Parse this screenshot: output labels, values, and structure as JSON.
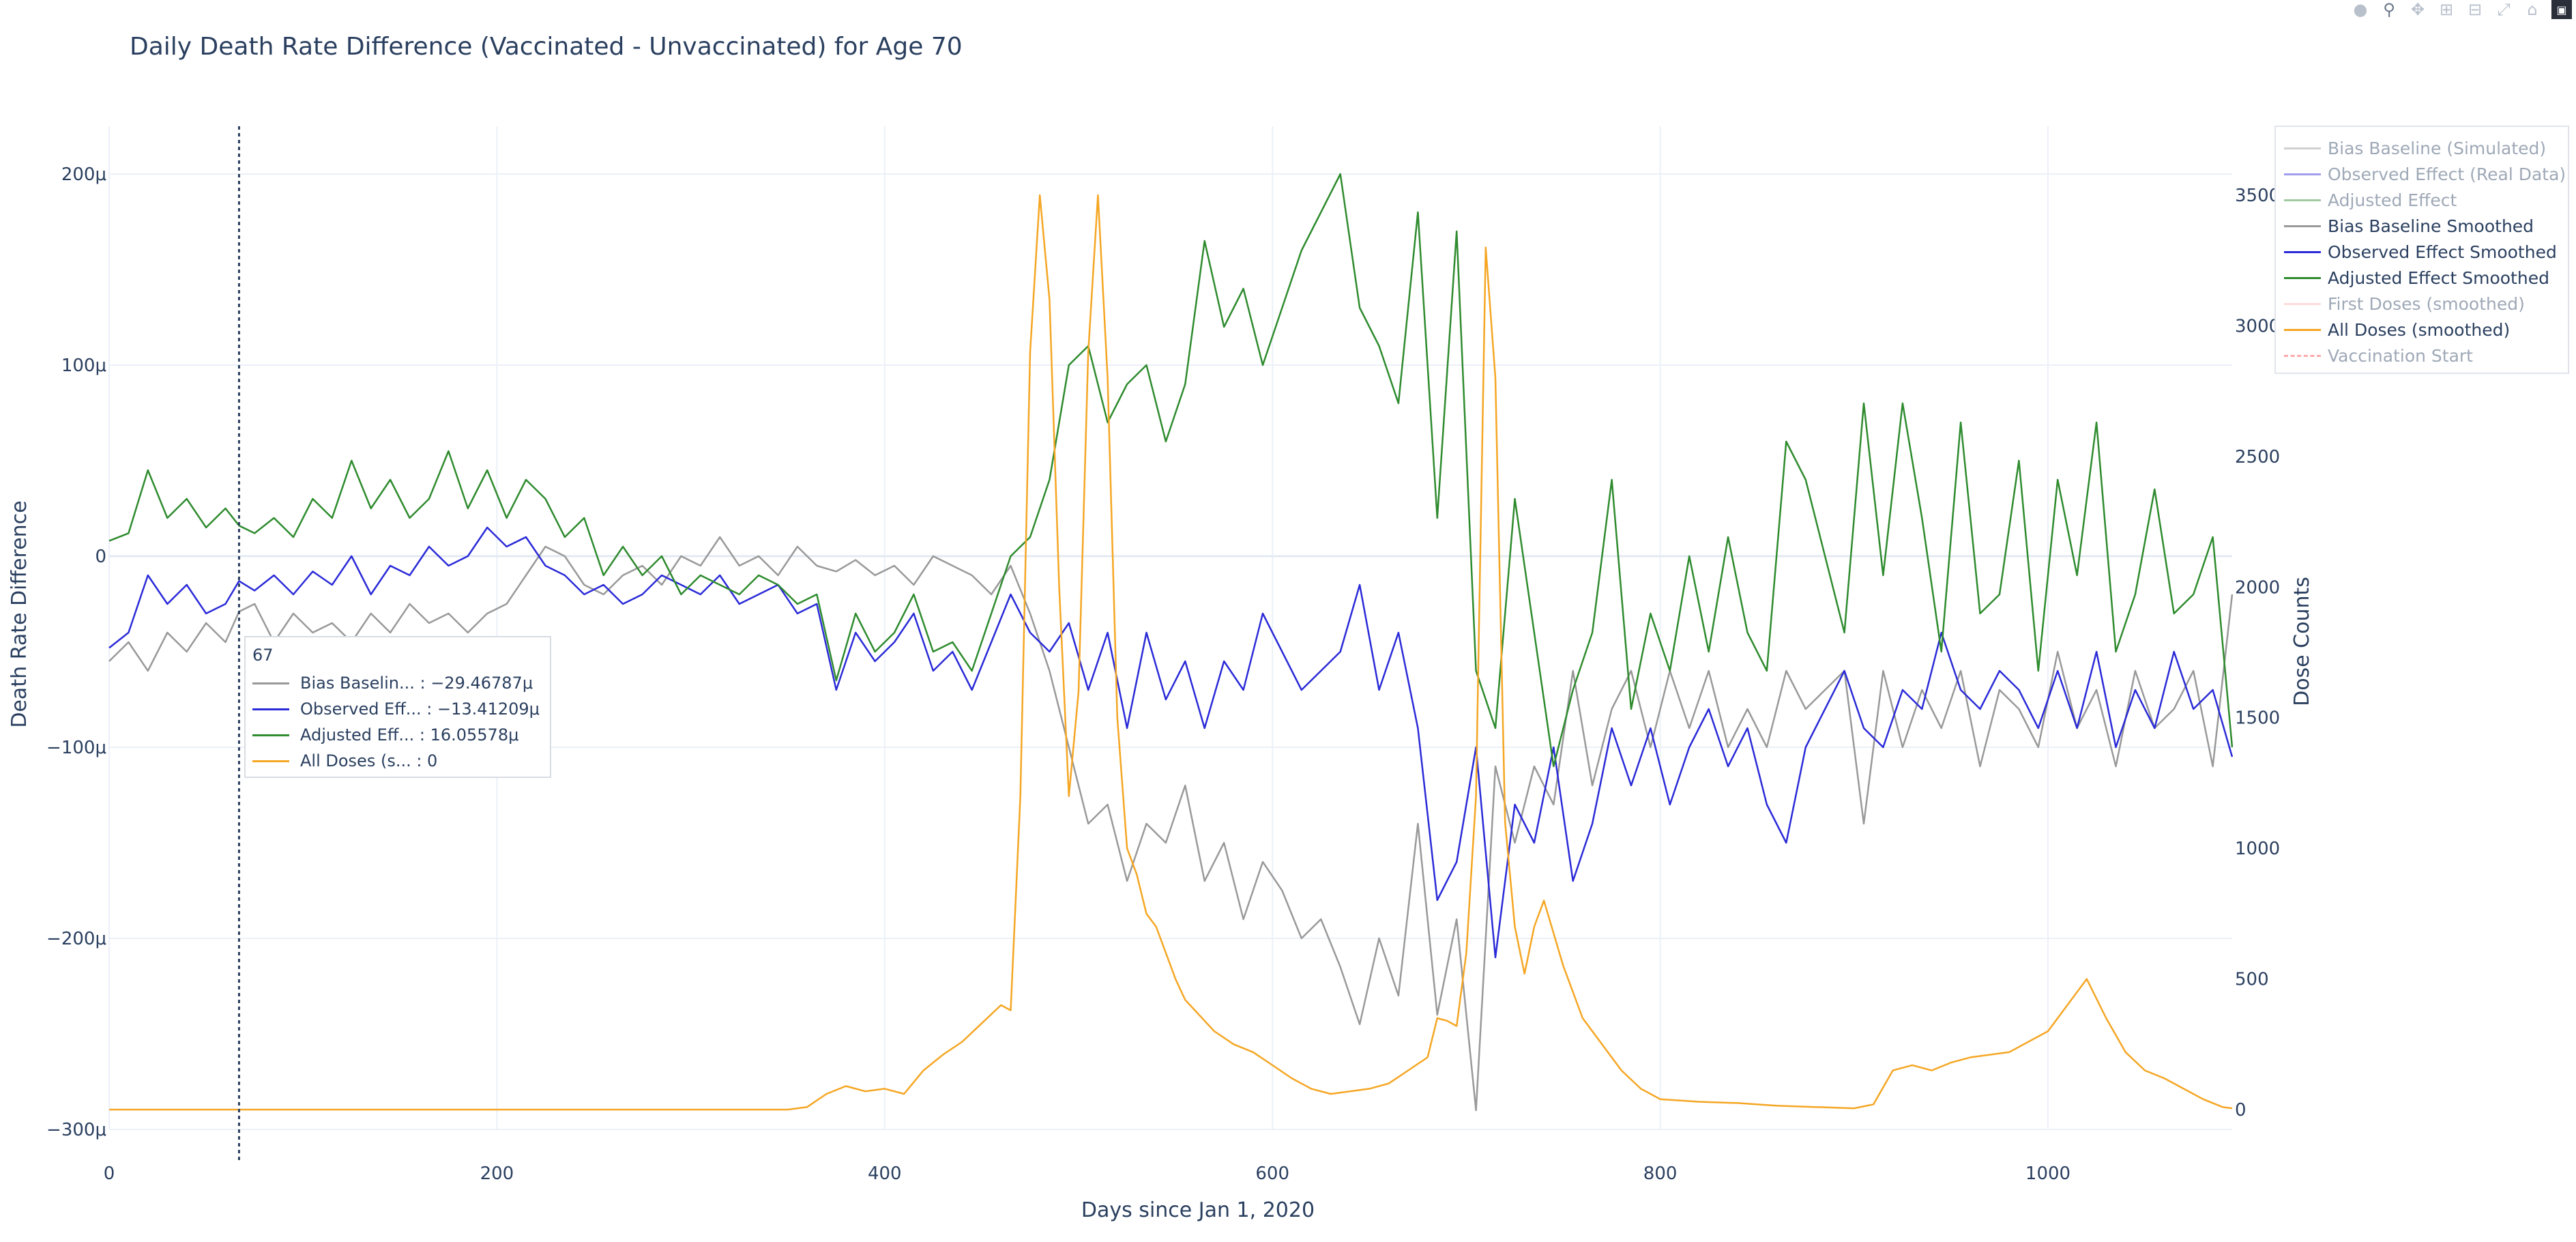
{
  "title": "Daily Death Rate Difference (Vaccinated - Unvaccinated) for Age 70",
  "modebar": [
    "camera-icon",
    "zoom-icon",
    "pan-icon",
    "zoom-in-icon",
    "zoom-out-icon",
    "autoscale-icon",
    "reset-axes-icon",
    "plotly-logo-icon"
  ],
  "legend": [
    {
      "name": "Bias Baseline (Simulated)",
      "color": "#999999",
      "visible": false
    },
    {
      "name": "Observed Effect (Real Data)",
      "color": "#2a2ad8",
      "visible": false
    },
    {
      "name": "Adjusted Effect",
      "color": "#2e8b2e",
      "visible": false
    },
    {
      "name": "Bias Baseline Smoothed",
      "color": "#999999",
      "visible": true
    },
    {
      "name": "Observed Effect Smoothed",
      "color": "#2a2ad8",
      "visible": true
    },
    {
      "name": "Adjusted Effect Smoothed",
      "color": "#2e8b2e",
      "visible": true
    },
    {
      "name": "First Doses (smoothed)",
      "color": "#ffb0b0",
      "visible": false
    },
    {
      "name": "All Doses (smoothed)",
      "color": "#f5a623",
      "visible": true
    },
    {
      "name": "Vaccination Start",
      "color": "#ff4444",
      "dash": true,
      "visible": false
    }
  ],
  "hover": {
    "x": "67",
    "rows": [
      {
        "label": "Bias Baselin... : −29.46787μ",
        "color": "#999999"
      },
      {
        "label": "Observed Eff... : −13.41209μ",
        "color": "#2a2ad8"
      },
      {
        "label": "Adjusted Eff... : 16.05578μ",
        "color": "#2e8b2e"
      },
      {
        "label": "All Doses (s... : 0",
        "color": "#f5a623"
      }
    ]
  },
  "chart_data": {
    "type": "line",
    "xlabel": "Days since Jan 1, 2020",
    "ylabel": "Death Rate Difference",
    "y2label": "Dose Counts",
    "xlim": [
      0,
      1095
    ],
    "ylim": [
      -300,
      225
    ],
    "y2lim": [
      0,
      3500
    ],
    "xticks": [
      0,
      200,
      400,
      600,
      800,
      1000
    ],
    "xtick_labels": [
      "0",
      "200",
      "400",
      "600",
      "800",
      "1000"
    ],
    "yticks": [
      -300,
      -200,
      -100,
      0,
      100,
      200
    ],
    "ytick_labels": [
      "−300μ",
      "−200μ",
      "−100μ",
      "0",
      "100μ",
      "200μ"
    ],
    "y2ticks": [
      0,
      500,
      1000,
      1500,
      2000,
      2500,
      3000,
      3500
    ],
    "y2tick_labels": [
      "0",
      "500",
      "1000",
      "1500",
      "2000",
      "2500",
      "3000",
      "3500"
    ],
    "hover_x": 67,
    "grid": true,
    "legend_position": "top-right",
    "series": [
      {
        "name": "Bias Baseline Smoothed",
        "color": "#999999",
        "axis": "y",
        "x": [
          0,
          10,
          20,
          30,
          40,
          50,
          60,
          67,
          75,
          85,
          95,
          105,
          115,
          125,
          135,
          145,
          155,
          165,
          175,
          185,
          195,
          205,
          215,
          225,
          235,
          245,
          255,
          265,
          275,
          285,
          295,
          305,
          315,
          325,
          335,
          345,
          355,
          365,
          375,
          385,
          395,
          405,
          415,
          425,
          435,
          445,
          455,
          465,
          475,
          485,
          495,
          505,
          515,
          525,
          535,
          545,
          555,
          565,
          575,
          585,
          595,
          605,
          615,
          625,
          635,
          645,
          655,
          665,
          675,
          685,
          695,
          705,
          715,
          725,
          735,
          745,
          755,
          765,
          775,
          785,
          795,
          805,
          815,
          825,
          835,
          845,
          855,
          865,
          875,
          885,
          895,
          905,
          915,
          925,
          935,
          945,
          955,
          965,
          975,
          985,
          995,
          1005,
          1015,
          1025,
          1035,
          1045,
          1055,
          1065,
          1075,
          1085,
          1095
        ],
        "y": [
          -55,
          -45,
          -60,
          -40,
          -50,
          -35,
          -45,
          -29,
          -25,
          -45,
          -30,
          -40,
          -35,
          -45,
          -30,
          -40,
          -25,
          -35,
          -30,
          -40,
          -30,
          -25,
          -10,
          5,
          0,
          -15,
          -20,
          -10,
          -5,
          -15,
          0,
          -5,
          10,
          -5,
          0,
          -10,
          5,
          -5,
          -8,
          -2,
          -10,
          -5,
          -15,
          0,
          -5,
          -10,
          -20,
          -5,
          -30,
          -60,
          -100,
          -140,
          -130,
          -170,
          -140,
          -150,
          -120,
          -170,
          -150,
          -190,
          -160,
          -175,
          -200,
          -190,
          -215,
          -245,
          -200,
          -230,
          -140,
          -240,
          -190,
          -290,
          -110,
          -150,
          -110,
          -130,
          -60,
          -120,
          -80,
          -60,
          -100,
          -60,
          -90,
          -60,
          -100,
          -80,
          -100,
          -60,
          -80,
          -70,
          -60,
          -140,
          -60,
          -100,
          -70,
          -90,
          -60,
          -110,
          -70,
          -80,
          -100,
          -50,
          -90,
          -70,
          -110,
          -60,
          -90,
          -80,
          -60,
          -110,
          -20
        ]
      },
      {
        "name": "Observed Effect Smoothed",
        "color": "#2a2ad8",
        "axis": "y",
        "x": [
          0,
          10,
          20,
          30,
          40,
          50,
          60,
          67,
          75,
          85,
          95,
          105,
          115,
          125,
          135,
          145,
          155,
          165,
          175,
          185,
          195,
          205,
          215,
          225,
          235,
          245,
          255,
          265,
          275,
          285,
          295,
          305,
          315,
          325,
          335,
          345,
          355,
          365,
          375,
          385,
          395,
          405,
          415,
          425,
          435,
          445,
          455,
          465,
          475,
          485,
          495,
          505,
          515,
          525,
          535,
          545,
          555,
          565,
          575,
          585,
          595,
          605,
          615,
          625,
          635,
          645,
          655,
          665,
          675,
          685,
          695,
          705,
          715,
          725,
          735,
          745,
          755,
          765,
          775,
          785,
          795,
          805,
          815,
          825,
          835,
          845,
          855,
          865,
          875,
          885,
          895,
          905,
          915,
          925,
          935,
          945,
          955,
          965,
          975,
          985,
          995,
          1005,
          1015,
          1025,
          1035,
          1045,
          1055,
          1065,
          1075,
          1085,
          1095
        ],
        "y": [
          -48,
          -40,
          -10,
          -25,
          -15,
          -30,
          -25,
          -13,
          -18,
          -10,
          -20,
          -8,
          -15,
          0,
          -20,
          -5,
          -10,
          5,
          -5,
          0,
          15,
          5,
          10,
          -5,
          -10,
          -20,
          -15,
          -25,
          -20,
          -10,
          -15,
          -20,
          -10,
          -25,
          -20,
          -15,
          -30,
          -25,
          -70,
          -40,
          -55,
          -45,
          -30,
          -60,
          -50,
          -70,
          -45,
          -20,
          -40,
          -50,
          -35,
          -70,
          -40,
          -90,
          -40,
          -75,
          -55,
          -90,
          -55,
          -70,
          -30,
          -50,
          -70,
          -60,
          -50,
          -15,
          -70,
          -40,
          -90,
          -180,
          -160,
          -100,
          -210,
          -130,
          -150,
          -100,
          -170,
          -140,
          -90,
          -120,
          -90,
          -130,
          -100,
          -80,
          -110,
          -90,
          -130,
          -150,
          -100,
          -80,
          -60,
          -90,
          -100,
          -70,
          -80,
          -40,
          -70,
          -80,
          -60,
          -70,
          -90,
          -60,
          -90,
          -50,
          -100,
          -70,
          -90,
          -50,
          -80,
          -70,
          -105
        ]
      },
      {
        "name": "Adjusted Effect Smoothed",
        "color": "#2e8b2e",
        "axis": "y",
        "x": [
          0,
          10,
          20,
          30,
          40,
          50,
          60,
          67,
          75,
          85,
          95,
          105,
          115,
          125,
          135,
          145,
          155,
          165,
          175,
          185,
          195,
          205,
          215,
          225,
          235,
          245,
          255,
          265,
          275,
          285,
          295,
          305,
          315,
          325,
          335,
          345,
          355,
          365,
          375,
          385,
          395,
          405,
          415,
          425,
          435,
          445,
          455,
          465,
          475,
          485,
          495,
          505,
          515,
          525,
          535,
          545,
          555,
          565,
          575,
          585,
          595,
          605,
          615,
          625,
          635,
          645,
          655,
          665,
          675,
          685,
          695,
          705,
          715,
          725,
          735,
          745,
          755,
          765,
          775,
          785,
          795,
          805,
          815,
          825,
          835,
          845,
          855,
          865,
          875,
          885,
          895,
          905,
          915,
          925,
          935,
          945,
          955,
          965,
          975,
          985,
          995,
          1005,
          1015,
          1025,
          1035,
          1045,
          1055,
          1065,
          1075,
          1085,
          1095
        ],
        "y": [
          8,
          12,
          45,
          20,
          30,
          15,
          25,
          16,
          12,
          20,
          10,
          30,
          20,
          50,
          25,
          40,
          20,
          30,
          55,
          25,
          45,
          20,
          40,
          30,
          10,
          20,
          -10,
          5,
          -10,
          0,
          -20,
          -10,
          -15,
          -20,
          -10,
          -15,
          -25,
          -20,
          -65,
          -30,
          -50,
          -40,
          -20,
          -50,
          -45,
          -60,
          -30,
          0,
          10,
          40,
          100,
          110,
          70,
          90,
          100,
          60,
          90,
          165,
          120,
          140,
          100,
          130,
          160,
          180,
          200,
          130,
          110,
          80,
          180,
          20,
          170,
          -60,
          -90,
          30,
          -40,
          -110,
          -70,
          -40,
          40,
          -80,
          -30,
          -60,
          0,
          -50,
          10,
          -40,
          -60,
          60,
          40,
          0,
          -40,
          80,
          -10,
          80,
          20,
          -50,
          70,
          -30,
          -20,
          50,
          -60,
          40,
          -10,
          70,
          -50,
          -20,
          35,
          -30,
          -20,
          10,
          -100
        ]
      },
      {
        "name": "All Doses (smoothed)",
        "color": "#f5a623",
        "axis": "y2",
        "x": [
          0,
          100,
          200,
          300,
          350,
          360,
          370,
          380,
          390,
          400,
          410,
          420,
          430,
          440,
          450,
          460,
          465,
          470,
          475,
          480,
          485,
          490,
          495,
          500,
          505,
          510,
          515,
          520,
          525,
          530,
          535,
          540,
          545,
          550,
          555,
          560,
          565,
          570,
          580,
          590,
          600,
          610,
          620,
          630,
          640,
          650,
          660,
          670,
          680,
          685,
          690,
          695,
          700,
          705,
          710,
          715,
          720,
          725,
          730,
          735,
          740,
          750,
          760,
          770,
          780,
          790,
          800,
          820,
          840,
          860,
          880,
          900,
          910,
          920,
          930,
          940,
          950,
          960,
          980,
          1000,
          1010,
          1020,
          1030,
          1040,
          1050,
          1060,
          1070,
          1080,
          1090,
          1095
        ],
        "y": [
          0,
          0,
          0,
          0,
          0,
          10,
          60,
          90,
          70,
          80,
          60,
          150,
          210,
          260,
          330,
          400,
          380,
          1200,
          2900,
          3500,
          3100,
          2000,
          1200,
          1600,
          2900,
          3500,
          2800,
          1500,
          1000,
          900,
          750,
          700,
          600,
          500,
          420,
          380,
          340,
          300,
          250,
          220,
          170,
          120,
          80,
          60,
          70,
          80,
          100,
          150,
          200,
          350,
          340,
          320,
          600,
          1200,
          3300,
          2800,
          1100,
          700,
          520,
          700,
          800,
          550,
          350,
          250,
          150,
          80,
          40,
          30,
          25,
          15,
          10,
          5,
          20,
          150,
          170,
          150,
          180,
          200,
          220,
          300,
          400,
          500,
          350,
          220,
          150,
          120,
          80,
          40,
          10,
          5
        ]
      }
    ]
  }
}
